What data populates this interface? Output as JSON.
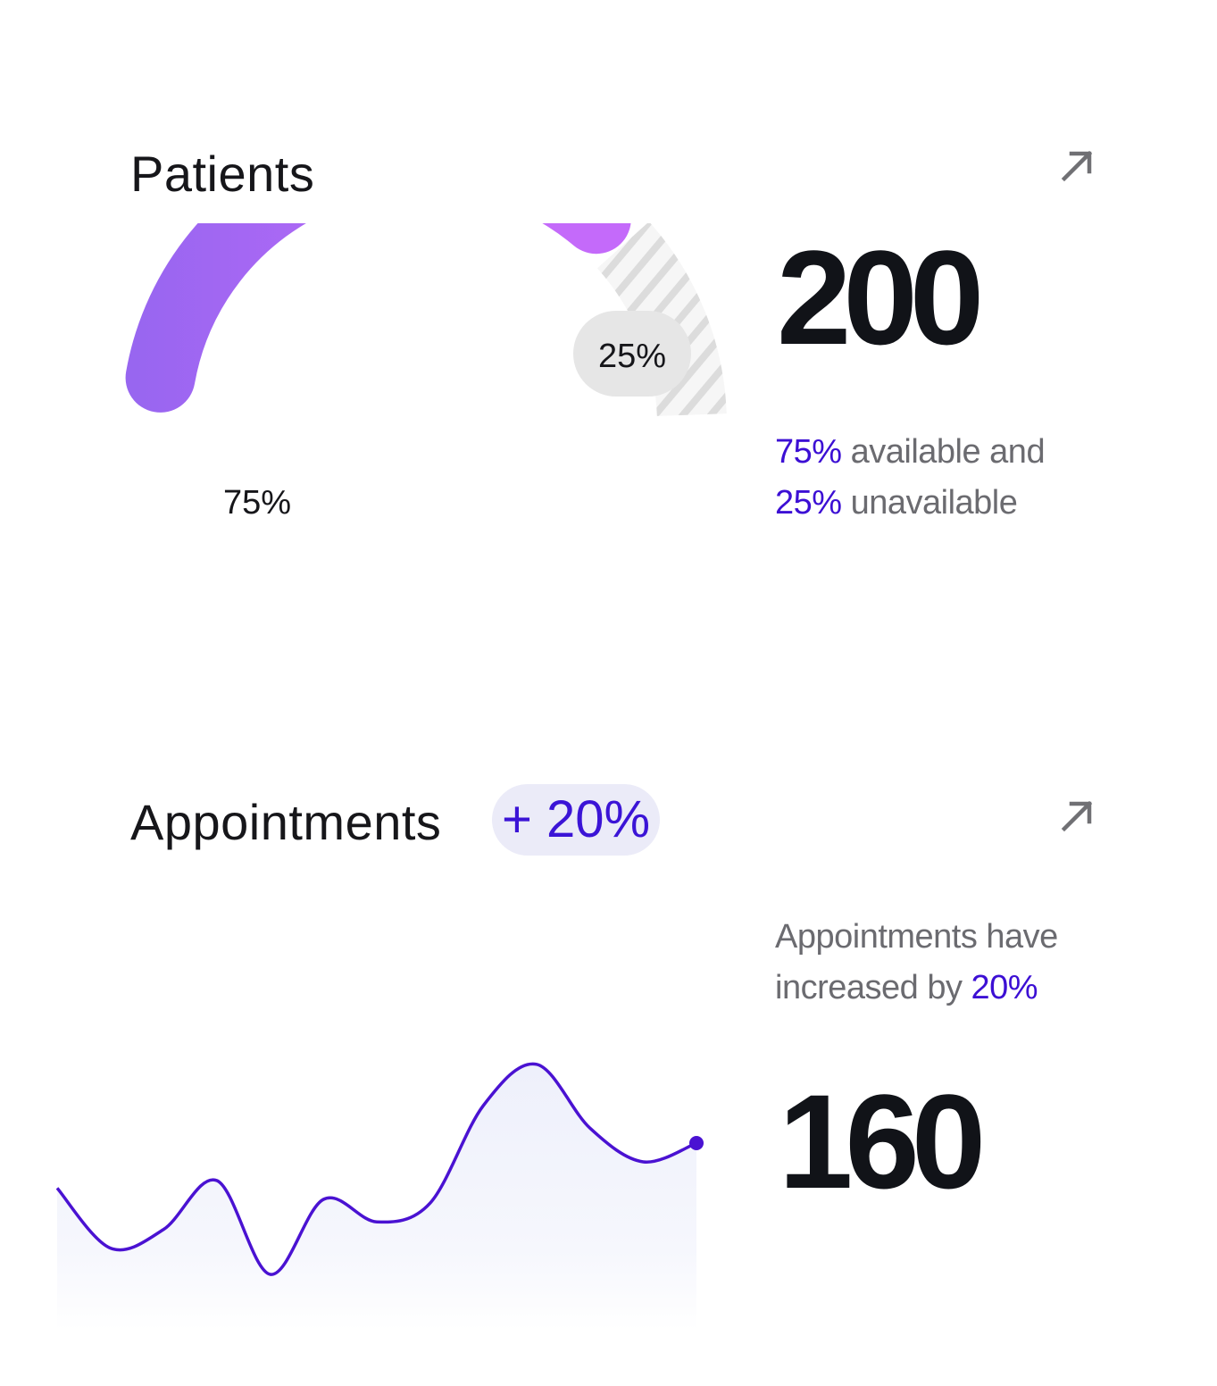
{
  "patients": {
    "title": "Patients",
    "total": "200",
    "desc": {
      "available_pct": "75%",
      "available_text": " available and",
      "unavailable_pct": "25%",
      "unavailable_text": " unavailable"
    },
    "colors": {
      "gradient_start": "#9766f0",
      "gradient_end": "#c46afa",
      "hatch": "#dcdcdc"
    },
    "icon": "arrow-up-right-icon"
  },
  "appointments": {
    "title": "Appointments",
    "badge": "+ 20%",
    "desc": {
      "line1": "Appointments have",
      "line2_prefix": "increased by ",
      "line2_pct": "20%"
    },
    "total": "160",
    "colors": {
      "line": "#4a12d2",
      "fill": "#eef0fb"
    },
    "icon": "arrow-up-right-icon"
  },
  "chart_data": [
    {
      "type": "pie",
      "labels": [
        "available",
        "unavailable"
      ],
      "values": [
        75,
        25
      ],
      "data_labels": [
        "75%",
        "25%"
      ]
    },
    {
      "type": "area",
      "x": [
        0,
        1,
        2,
        3,
        4,
        5,
        6,
        7,
        8,
        9,
        10,
        11,
        12
      ],
      "y": [
        38,
        22,
        27,
        40,
        15,
        35,
        29,
        34,
        60,
        71,
        54,
        45,
        50
      ],
      "ylim": [
        0,
        100
      ],
      "grid": false
    }
  ]
}
